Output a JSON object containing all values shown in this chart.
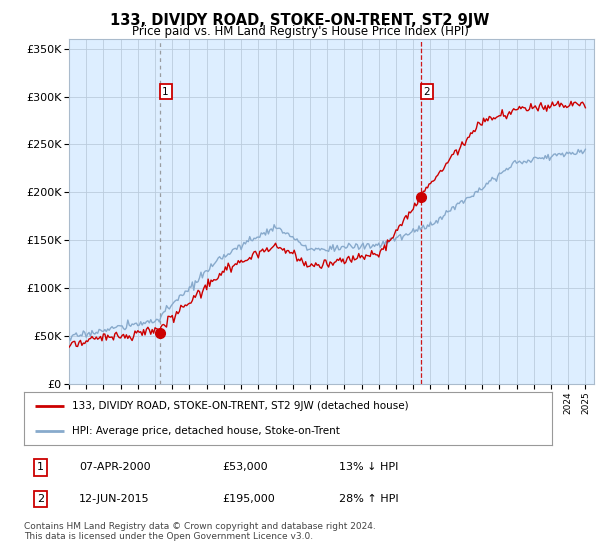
{
  "title": "133, DIVIDY ROAD, STOKE-ON-TRENT, ST2 9JW",
  "subtitle": "Price paid vs. HM Land Registry's House Price Index (HPI)",
  "legend_line1": "133, DIVIDY ROAD, STOKE-ON-TRENT, ST2 9JW (detached house)",
  "legend_line2": "HPI: Average price, detached house, Stoke-on-Trent",
  "transaction1_date": "07-APR-2000",
  "transaction1_price": "£53,000",
  "transaction1_hpi": "13% ↓ HPI",
  "transaction1_year": 2000.27,
  "transaction1_value": 53000,
  "transaction2_date": "12-JUN-2015",
  "transaction2_price": "£195,000",
  "transaction2_hpi": "28% ↑ HPI",
  "transaction2_year": 2015.44,
  "transaction2_value": 195000,
  "copyright": "Contains HM Land Registry data © Crown copyright and database right 2024.\nThis data is licensed under the Open Government Licence v3.0.",
  "ylim": [
    0,
    360000
  ],
  "xlim": [
    1995,
    2025.5
  ],
  "yticks": [
    0,
    50000,
    100000,
    150000,
    200000,
    250000,
    300000,
    350000
  ],
  "ytick_labels": [
    "£0",
    "£50K",
    "£100K",
    "£150K",
    "£200K",
    "£250K",
    "£300K",
    "£350K"
  ],
  "line_color_red": "#cc0000",
  "line_color_blue": "#88aacc",
  "marker_color_red": "#cc0000",
  "plot_bg": "#ddeeff",
  "grid_color": "#bbccdd",
  "vline1_color": "#888888",
  "vline2_color": "#cc0000"
}
